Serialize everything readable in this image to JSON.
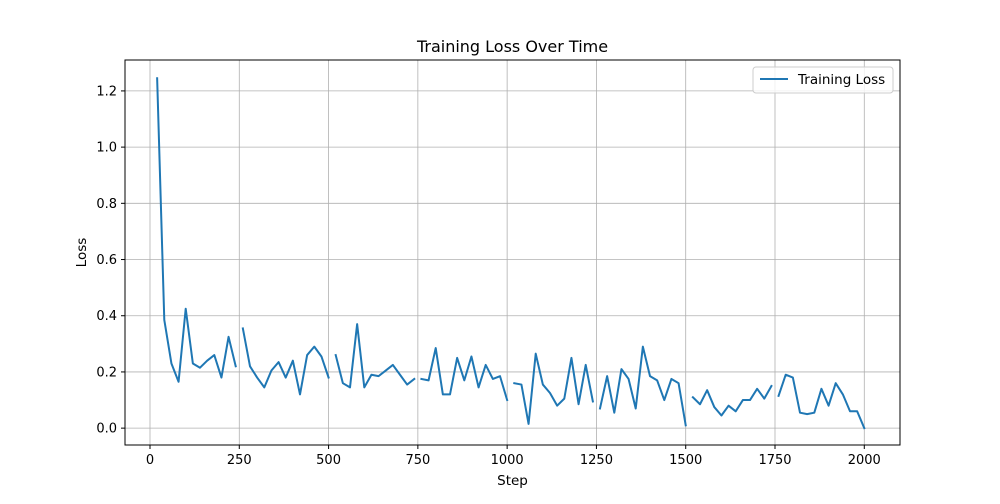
{
  "chart_data": {
    "type": "line",
    "title": "Training Loss Over Time",
    "xlabel": "Step",
    "ylabel": "Loss",
    "xlim": [
      -70,
      2100
    ],
    "ylim": [
      -0.06,
      1.31
    ],
    "xticks": [
      0,
      250,
      500,
      750,
      1000,
      1250,
      1500,
      1750,
      2000
    ],
    "yticks": [
      0.0,
      0.2,
      0.4,
      0.6,
      0.8,
      1.0,
      1.2
    ],
    "xtick_labels": [
      "0",
      "250",
      "500",
      "750",
      "1000",
      "1250",
      "1500",
      "1750",
      "2000"
    ],
    "ytick_labels": [
      "0.0",
      "0.2",
      "0.4",
      "0.6",
      "0.8",
      "1.0",
      "1.2"
    ],
    "grid": true,
    "legend_position": "upper right",
    "series": [
      {
        "name": "Training Loss",
        "color": "#1f77b4",
        "segments": [
          {
            "x": [
              20,
              40,
              60,
              80,
              100,
              120,
              140,
              160,
              180,
              200,
              220,
              240
            ],
            "y": [
              1.245,
              0.385,
              0.23,
              0.165,
              0.425,
              0.23,
              0.215,
              0.24,
              0.26,
              0.18,
              0.325,
              0.22
            ]
          },
          {
            "x": [
              260,
              280,
              300,
              320,
              340,
              360,
              380,
              400,
              420,
              440,
              460,
              480,
              500
            ],
            "y": [
              0.355,
              0.22,
              0.18,
              0.145,
              0.205,
              0.235,
              0.18,
              0.24,
              0.12,
              0.26,
              0.29,
              0.255,
              0.18
            ]
          },
          {
            "x": [
              520,
              540,
              560,
              580,
              600,
              620,
              640,
              660,
              680,
              700,
              720,
              740
            ],
            "y": [
              0.26,
              0.16,
              0.145,
              0.37,
              0.145,
              0.19,
              0.185,
              0.205,
              0.225,
              0.19,
              0.155,
              0.175
            ]
          },
          {
            "x": [
              760,
              780,
              800,
              820,
              840,
              860,
              880,
              900,
              920,
              940,
              960,
              980,
              1000
            ],
            "y": [
              0.175,
              0.17,
              0.285,
              0.12,
              0.12,
              0.25,
              0.17,
              0.255,
              0.145,
              0.225,
              0.175,
              0.185,
              0.1
            ]
          },
          {
            "x": [
              1020,
              1040,
              1060,
              1080,
              1100,
              1120,
              1140,
              1160,
              1180,
              1200,
              1220,
              1240
            ],
            "y": [
              0.16,
              0.155,
              0.015,
              0.265,
              0.155,
              0.125,
              0.08,
              0.105,
              0.25,
              0.085,
              0.225,
              0.095
            ]
          },
          {
            "x": [
              1260,
              1280,
              1300,
              1320,
              1340,
              1360,
              1380,
              1400,
              1420,
              1440,
              1460,
              1480,
              1500
            ],
            "y": [
              0.07,
              0.185,
              0.055,
              0.21,
              0.175,
              0.07,
              0.29,
              0.185,
              0.17,
              0.1,
              0.175,
              0.16,
              0.01
            ]
          },
          {
            "x": [
              1520,
              1540,
              1560,
              1580,
              1600,
              1620,
              1640,
              1660,
              1680,
              1700,
              1720,
              1740
            ],
            "y": [
              0.11,
              0.085,
              0.135,
              0.075,
              0.045,
              0.08,
              0.06,
              0.1,
              0.1,
              0.14,
              0.105,
              0.15
            ]
          },
          {
            "x": [
              1760,
              1780,
              1800,
              1820,
              1840,
              1860,
              1880,
              1900,
              1920,
              1940,
              1960,
              1980,
              2000
            ],
            "y": [
              0.115,
              0.19,
              0.18,
              0.055,
              0.05,
              0.055,
              0.14,
              0.08,
              0.16,
              0.12,
              0.06,
              0.06,
              0.0
            ]
          }
        ]
      }
    ]
  }
}
